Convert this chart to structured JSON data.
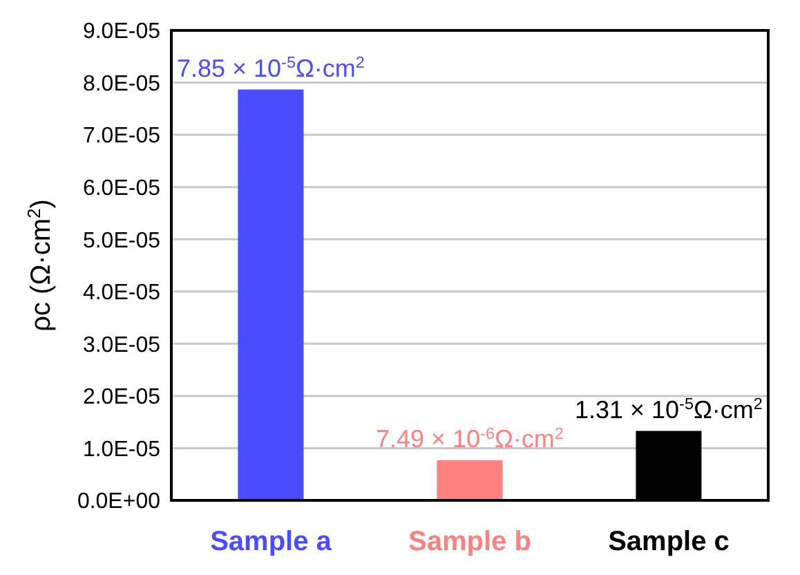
{
  "chart_data": {
    "type": "bar",
    "ylabel": "ρc (Ω·cm$^{2}$)",
    "categories": [
      "Sample a",
      "Sample b",
      "Sample c"
    ],
    "values": [
      7.85e-05,
      7.49e-06,
      1.31e-05
    ],
    "colors": [
      "#4b4bff",
      "#ff8080",
      "#000000"
    ],
    "annotations": [
      {
        "text": "7.85 × 10$^{-5}$Ω·cm$^{2}$",
        "x": "Sample a",
        "y": 7.85e-05
      },
      {
        "text": "7.49 × 10$^{-6}$Ω·cm$^{2}$",
        "x": "Sample b",
        "y": 7.49e-06
      },
      {
        "text": "1.31 × 10$^{-5}$Ω·cm$^{2}$",
        "x": "Sample c",
        "y": 1.31e-05
      }
    ],
    "ylim": [
      0,
      9e-05
    ],
    "yticks": [
      {
        "value": 0,
        "label": "0.0E+00"
      },
      {
        "value": 1e-05,
        "label": "1.0E-05"
      },
      {
        "value": 2e-05,
        "label": "2.0E-05"
      },
      {
        "value": 3e-05,
        "label": "3.0E-05"
      },
      {
        "value": 4e-05,
        "label": "4.0E-05"
      },
      {
        "value": 5e-05,
        "label": "5.0E-05"
      },
      {
        "value": 6e-05,
        "label": "6.0E-05"
      },
      {
        "value": 7e-05,
        "label": "7.0E-05"
      },
      {
        "value": 8e-05,
        "label": "8.0E-05"
      },
      {
        "value": 9e-05,
        "label": "9.0E-05"
      }
    ],
    "grid": "y",
    "legend": false
  }
}
